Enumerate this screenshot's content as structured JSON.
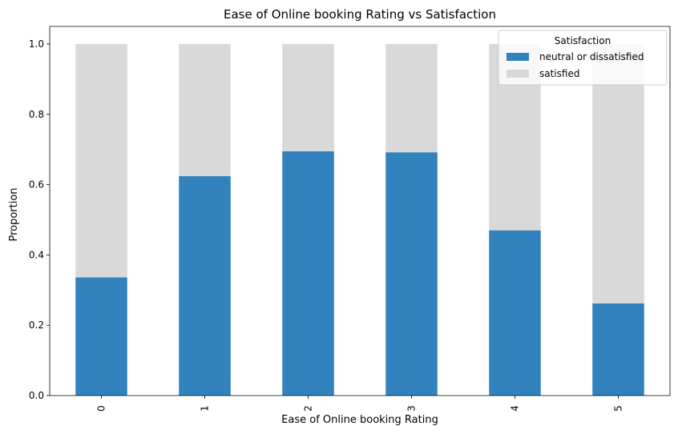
{
  "chart_data": {
    "type": "bar",
    "stacked": true,
    "title": "Ease of Online booking Rating vs Satisfaction",
    "xlabel": "Ease of Online booking Rating",
    "ylabel": "Proportion",
    "categories": [
      "0",
      "1",
      "2",
      "3",
      "4",
      "5"
    ],
    "ylim": [
      0,
      1.05
    ],
    "yticks": [
      "0.0",
      "0.2",
      "0.4",
      "0.6",
      "0.8",
      "1.0"
    ],
    "grid": false,
    "legend": {
      "title": "Satisfaction",
      "placement": "top-right"
    },
    "series": [
      {
        "name": "neutral or dissatisfied",
        "color": "#3182bd",
        "values": [
          0.336,
          0.624,
          0.695,
          0.692,
          0.47,
          0.262
        ]
      },
      {
        "name": "satisfied",
        "color": "#d9d9d9",
        "values": [
          0.664,
          0.376,
          0.305,
          0.308,
          0.53,
          0.738
        ]
      }
    ]
  }
}
